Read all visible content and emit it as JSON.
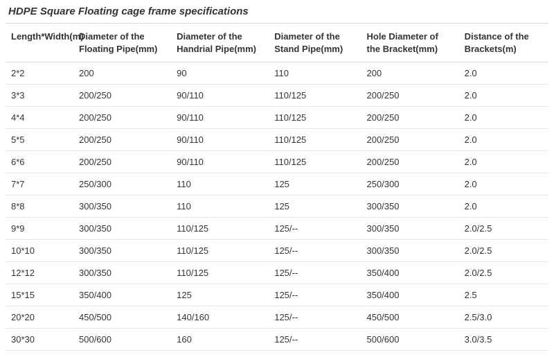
{
  "title": "HDPE Square Floating cage frame specifications",
  "table": {
    "type": "table",
    "columns": [
      "Length*Width(m)",
      "Diameter of the Floating Pipe(mm)",
      "Diameter of the Handrial Pipe(mm)",
      "Diameter of the Stand Pipe(mm)",
      "Hole Diameter of the Bracket(mm)",
      "Distance of the Brackets(m)"
    ],
    "column_widths_pct": [
      12.5,
      18,
      18,
      17,
      18,
      16.5
    ],
    "rows": [
      [
        "2*2",
        "200",
        "90",
        "110",
        "200",
        "2.0"
      ],
      [
        "3*3",
        "200/250",
        "90/110",
        "110/125",
        "200/250",
        "2.0"
      ],
      [
        "4*4",
        "200/250",
        "90/110",
        "110/125",
        "200/250",
        "2.0"
      ],
      [
        "5*5",
        "200/250",
        "90/110",
        "110/125",
        "200/250",
        "2.0"
      ],
      [
        "6*6",
        "200/250",
        "90/110",
        "110/125",
        "200/250",
        "2.0"
      ],
      [
        "7*7",
        "250/300",
        "110",
        "125",
        "250/300",
        "2.0"
      ],
      [
        "8*8",
        "300/350",
        "110",
        "125",
        "300/350",
        "2.0"
      ],
      [
        "9*9",
        "300/350",
        "110/125",
        "125/--",
        "300/350",
        "2.0/2.5"
      ],
      [
        "10*10",
        "300/350",
        "110/125",
        "125/--",
        "300/350",
        "2.0/2.5"
      ],
      [
        "12*12",
        "300/350",
        "110/125",
        "125/--",
        "350/400",
        "2.0/2.5"
      ],
      [
        "15*15",
        "350/400",
        "125",
        "125/--",
        "350/400",
        "2.5"
      ],
      [
        "20*20",
        "450/500",
        "140/160",
        "125/--",
        "450/500",
        "2.5/3.0"
      ],
      [
        "30*30",
        "500/600",
        "160",
        "125/--",
        "500/600",
        "3.0/3.5"
      ]
    ],
    "header_fontsize_pt": 10,
    "body_fontsize_pt": 10,
    "title_fontsize_pt": 11,
    "text_color": "#333333",
    "border_color": "#e5e5e5",
    "header_border_color": "#d9d9d9",
    "background_color": "#ffffff"
  }
}
